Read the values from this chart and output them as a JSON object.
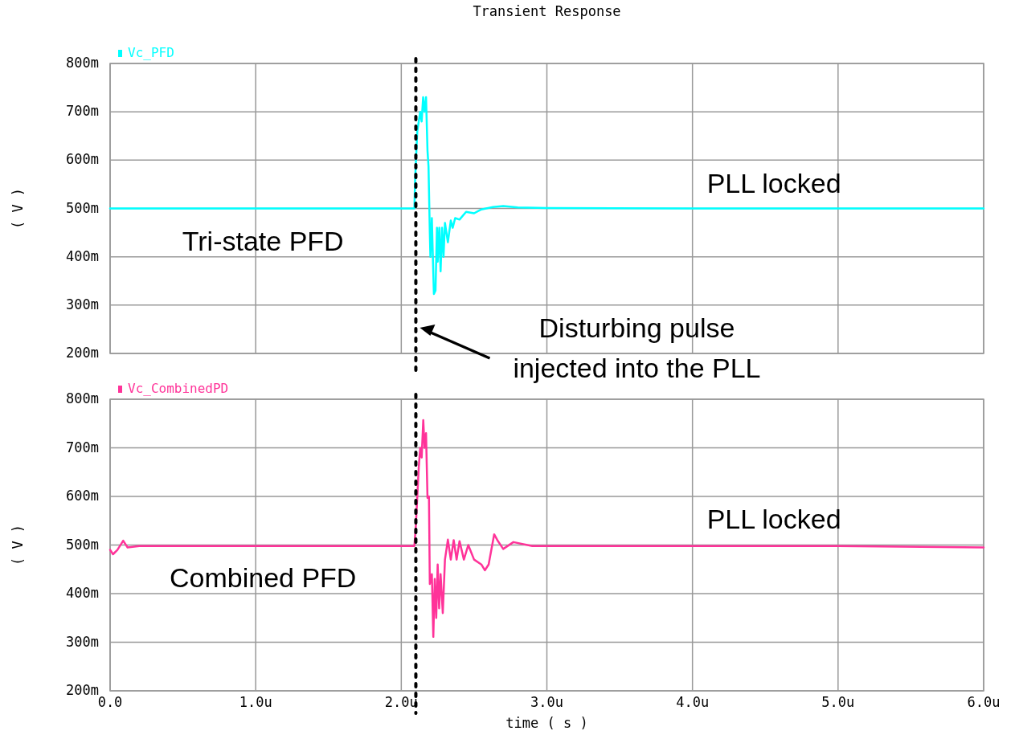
{
  "chart_data": [
    {
      "type": "line",
      "title": "Transient Response",
      "ylabel": "( V )",
      "legend": "top left",
      "grid": true,
      "tick_labels": "y",
      "xlim": [
        0,
        6
      ],
      "xticks": [
        0,
        1,
        2,
        3,
        4,
        5,
        6
      ],
      "ylim": [
        200,
        800
      ],
      "yticks": [
        {
          "value": 200,
          "label": "200m"
        },
        {
          "value": 300,
          "label": "300m"
        },
        {
          "value": 400,
          "label": "400m"
        },
        {
          "value": 500,
          "label": "500m"
        },
        {
          "value": 600,
          "label": "600m"
        },
        {
          "value": 700,
          "label": "700m"
        },
        {
          "value": 800,
          "label": "800m"
        }
      ],
      "series": [
        {
          "name": "Vc_PFD",
          "color": "#00ffff",
          "x": [
            0,
            2.09,
            2.095,
            2.11,
            2.13,
            2.14,
            2.15,
            2.16,
            2.17,
            2.18,
            2.187,
            2.196,
            2.2,
            2.21,
            2.215,
            2.224,
            2.235,
            2.245,
            2.25,
            2.261,
            2.27,
            2.28,
            2.29,
            2.3,
            2.32,
            2.34,
            2.353,
            2.37,
            2.4,
            2.445,
            2.5,
            2.55,
            2.63,
            2.7,
            2.8,
            3,
            4,
            6
          ],
          "values": [
            500,
            500,
            560,
            660,
            700,
            680,
            730,
            700,
            730,
            620,
            587,
            450,
            400,
            480,
            420,
            323,
            330,
            460,
            390,
            460,
            370,
            460,
            400,
            470,
            430,
            475,
            460,
            480,
            477,
            493,
            490,
            498,
            503,
            505,
            502,
            501,
            500,
            500
          ]
        }
      ],
      "ref_lines": [
        {
          "axis": "x",
          "value": 2.1,
          "label": "Disturbing pulse\ninjected into the PLL",
          "color": "#000000",
          "line_style": "dotted"
        }
      ],
      "annotations": [
        "Tri-state PFD",
        "PLL locked"
      ]
    },
    {
      "type": "line",
      "xlabel": "time ( s )",
      "ylabel": "( V )",
      "legend": "top left",
      "grid": true,
      "xlim": [
        0,
        6
      ],
      "xticks": [
        {
          "value": 0,
          "label": "0.0"
        },
        {
          "value": 1,
          "label": "1.0u"
        },
        {
          "value": 2,
          "label": "2.0u"
        },
        {
          "value": 3,
          "label": "3.0u"
        },
        {
          "value": 4,
          "label": "4.0u"
        },
        {
          "value": 5,
          "label": "5.0u"
        },
        {
          "value": 6,
          "label": "6.0u"
        }
      ],
      "ylim": [
        200,
        800
      ],
      "yticks": [
        {
          "value": 200,
          "label": "200m"
        },
        {
          "value": 300,
          "label": "300m"
        },
        {
          "value": 400,
          "label": "400m"
        },
        {
          "value": 500,
          "label": "500m"
        },
        {
          "value": 600,
          "label": "600m"
        },
        {
          "value": 700,
          "label": "700m"
        },
        {
          "value": 800,
          "label": "800m"
        }
      ],
      "series": [
        {
          "name": "Vc_CombinedPD",
          "color": "#ff3399",
          "x": [
            0,
            0.02,
            0.05,
            0.09,
            0.12,
            0.2,
            1,
            2.09,
            2.1,
            2.12,
            2.13,
            2.14,
            2.151,
            2.16,
            2.17,
            2.18,
            2.19,
            2.196,
            2.21,
            2.22,
            2.23,
            2.24,
            2.25,
            2.26,
            2.27,
            2.285,
            2.3,
            2.32,
            2.34,
            2.36,
            2.38,
            2.4,
            2.43,
            2.46,
            2.5,
            2.55,
            2.574,
            2.6,
            2.638,
            2.66,
            2.7,
            2.77,
            2.9,
            3,
            4,
            5,
            6
          ],
          "values": [
            490,
            481,
            490,
            509,
            495,
            498,
            498,
            498,
            540,
            660,
            700,
            680,
            757,
            700,
            730,
            597,
            600,
            420,
            440,
            311,
            430,
            350,
            460,
            370,
            440,
            360,
            470,
            511,
            470,
            510,
            470,
            508,
            470,
            500,
            470,
            460,
            448,
            460,
            522,
            510,
            492,
            506,
            498,
            498,
            498,
            498,
            495
          ]
        }
      ],
      "ref_lines": [
        {
          "axis": "x",
          "value": 2.1,
          "color": "#000000",
          "line_style": "dotted"
        }
      ],
      "annotations": [
        "Combined PFD",
        "PLL locked"
      ]
    }
  ]
}
